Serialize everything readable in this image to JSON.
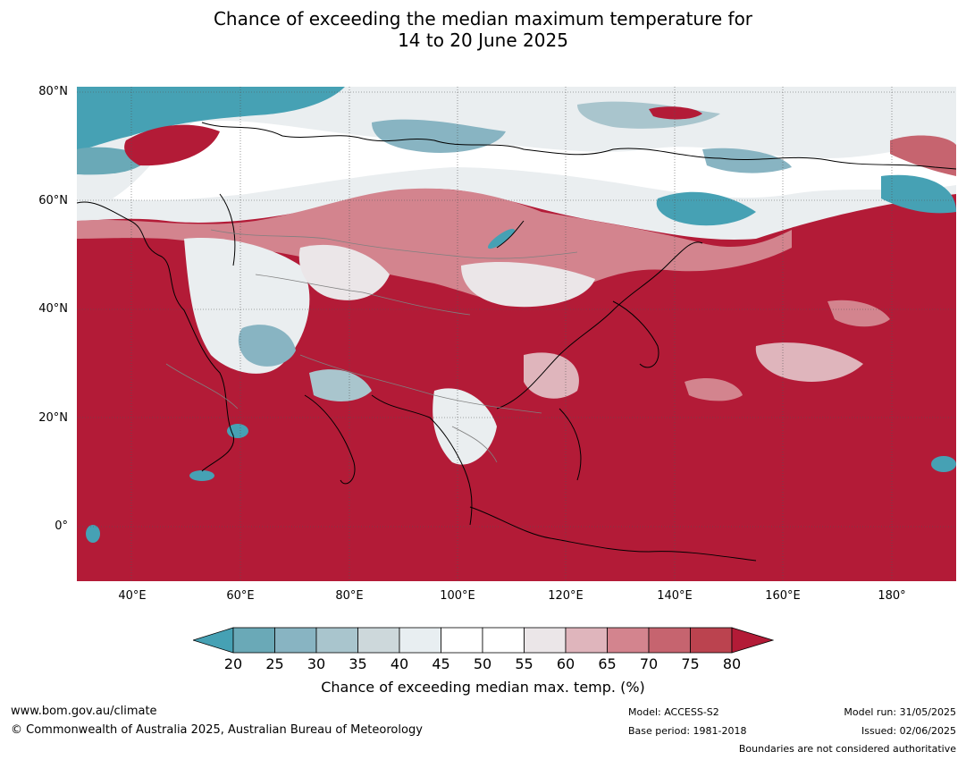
{
  "title": {
    "line1": "Chance of exceeding the median maximum temperature for",
    "line2": "14 to 20 June 2025"
  },
  "map": {
    "lat_labels": [
      "80°N",
      "60°N",
      "40°N",
      "20°N",
      "0°"
    ],
    "lon_labels": [
      "40°E",
      "60°E",
      "80°E",
      "100°E",
      "120°E",
      "140°E",
      "160°E",
      "180°"
    ],
    "colors": {
      "high": "#b31b37",
      "mid_warm": "#d3848e",
      "neutral": "#ffffff",
      "light_grey": "#e8eef1",
      "cool": "#8ab7c4",
      "cold": "#44a0b3"
    }
  },
  "colorbar": {
    "ticks": [
      "20",
      "25",
      "30",
      "35",
      "40",
      "45",
      "50",
      "55",
      "60",
      "65",
      "70",
      "75",
      "80"
    ],
    "colors": [
      "#46a1b4",
      "#6aa9b7",
      "#88b4c2",
      "#a9c5cd",
      "#cdd8db",
      "#e8eef1",
      "#ffffff",
      "#ffffff",
      "#ebe6e8",
      "#dfb5bc",
      "#d3848e",
      "#c6646f",
      "#bb434f",
      "#b31b37"
    ],
    "label": "Chance of exceeding median max. temp. (%)"
  },
  "footer": {
    "url": "www.bom.gov.au/climate",
    "copyright": "© Commonwealth of Australia 2025, Australian Bureau of Meteorology",
    "model": "Model: ACCESS-S2",
    "base_period": "Base period: 1981-2018",
    "model_run": "Model run: 31/05/2025",
    "issued": "Issued: 02/06/2025",
    "disclaimer": "Boundaries are not considered authoritative"
  }
}
